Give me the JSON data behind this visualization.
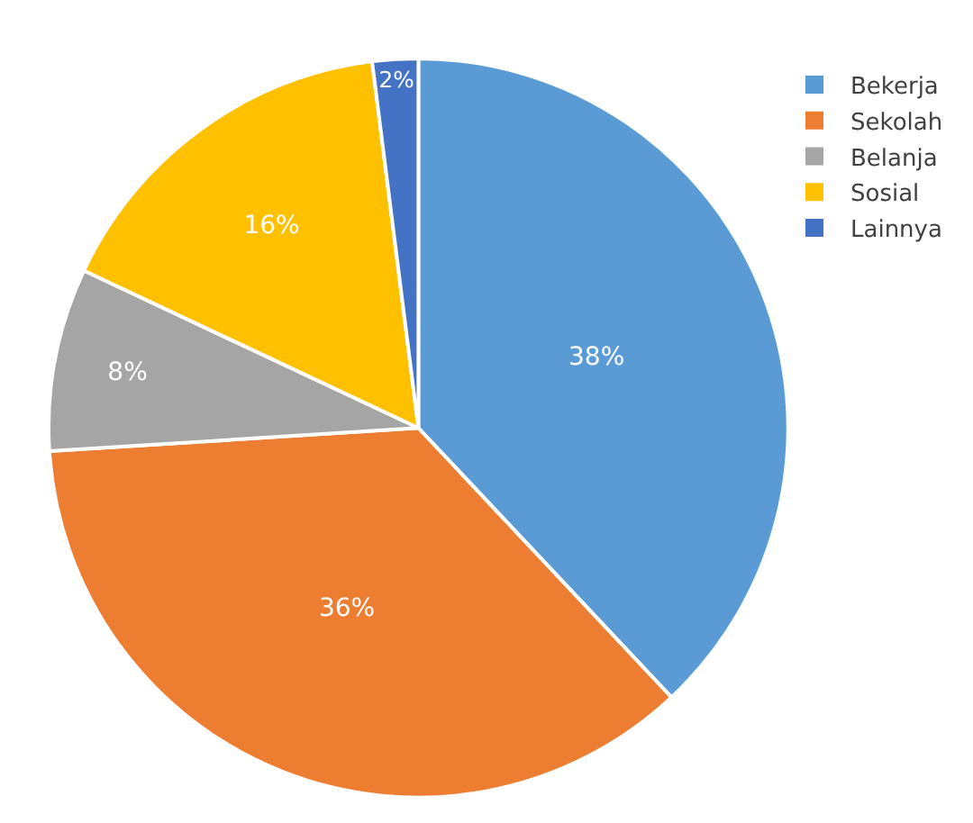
{
  "chart_data": {
    "type": "pie",
    "categories": [
      "Bekerja",
      "Sekolah",
      "Belanja",
      "Sosial",
      "Lainnya"
    ],
    "values": [
      38,
      36,
      8,
      16,
      2
    ],
    "colors": [
      "#5b9bd5",
      "#ed7d31",
      "#a5a5a5",
      "#ffc000",
      "#4472c4"
    ],
    "value_labels": [
      "38%",
      "36%",
      "8%",
      "16%",
      "2%"
    ],
    "legend": "top right"
  }
}
